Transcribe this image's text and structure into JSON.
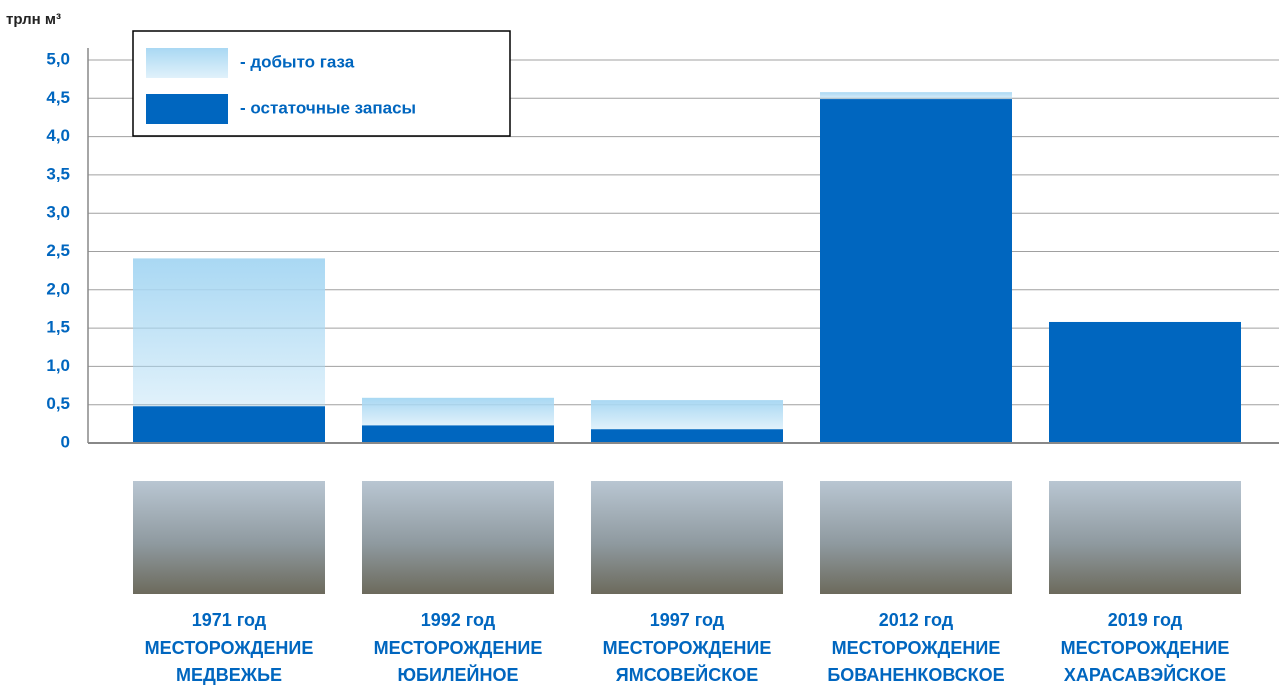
{
  "chart_data": {
    "type": "stacked-bar",
    "y_label": "трлн м³",
    "categories": [
      "1971 год",
      "1992 год",
      "1997 год",
      "2012 год",
      "2019 год"
    ],
    "fields": [
      [
        "МЕСТОРОЖДЕНИЕ",
        "МЕДВЕЖЬЕ"
      ],
      [
        "МЕСТОРОЖДЕНИЕ",
        "ЮБИЛЕЙНОЕ"
      ],
      [
        "МЕСТОРОЖДЕНИЕ",
        "ЯМСОВЕЙСКОЕ"
      ],
      [
        "МЕСТОРОЖДЕНИЕ",
        "БОВАНЕНКОВСКОЕ"
      ],
      [
        "МЕСТОРОЖДЕНИЕ",
        "ХАРАСАВЭЙСКОЕ"
      ]
    ],
    "series": [
      {
        "name": "- остаточные запасы",
        "color": "#0066bf",
        "values": [
          0.48,
          0.23,
          0.18,
          4.49,
          1.58
        ]
      },
      {
        "name": "- добыто газа",
        "color": "#a9d8f3",
        "values": [
          1.93,
          0.36,
          0.38,
          0.09,
          0
        ]
      }
    ],
    "ylim": [
      0,
      5
    ],
    "yticks": [
      0,
      {
        "value": 0.5,
        "label": "0,5"
      },
      {
        "value": 1,
        "label": "1,0"
      },
      {
        "value": 1.5,
        "label": "1,5"
      },
      {
        "value": 2,
        "label": "2,0"
      },
      {
        "value": 2.5,
        "label": "2,5"
      },
      {
        "value": 3,
        "label": "3,0"
      },
      {
        "value": 3.5,
        "label": "3,5"
      },
      {
        "value": 4,
        "label": "4,0"
      },
      {
        "value": 4.5,
        "label": "4,5"
      },
      {
        "value": 5,
        "label": "5,0"
      }
    ],
    "grid": true
  }
}
